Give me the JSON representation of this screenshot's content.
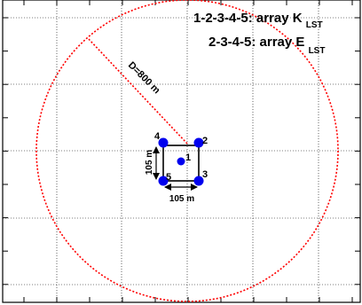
{
  "diagram": {
    "legend": {
      "line1": {
        "main": "1-2-3-4-5: array K",
        "sub": "LST"
      },
      "line2": {
        "main": "2-3-4-5: array E",
        "sub": "LST"
      }
    },
    "diameter_label": "D=800 m",
    "dimension_vertical": "105 m",
    "dimension_horizontal": "105 m",
    "stations": [
      {
        "id": "1",
        "label": "1"
      },
      {
        "id": "2",
        "label": "2"
      },
      {
        "id": "3",
        "label": "3"
      },
      {
        "id": "4",
        "label": "4"
      },
      {
        "id": "5",
        "label": "5"
      }
    ],
    "colors": {
      "circle": "#ff0000",
      "station": "#0000ee",
      "grid": "#000000",
      "frame": "#000000"
    }
  }
}
